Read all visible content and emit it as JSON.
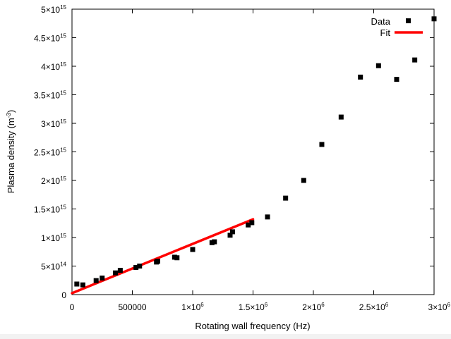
{
  "chart_data": {
    "type": "scatter",
    "title": "",
    "xlabel": "Rotating wall frequency (Hz)",
    "ylabel": "Plasma density (m",
    "ylabel_exp": "-3",
    "ylabel_close": ")",
    "xlim": [
      0,
      3000000
    ],
    "ylim": [
      0,
      5000000000000000.0
    ],
    "grid": false,
    "legend_position": "top-right",
    "x_ticks": [
      {
        "value": 0,
        "mantissa": "0",
        "exp": ""
      },
      {
        "value": 500000,
        "mantissa": "500000",
        "exp": ""
      },
      {
        "value": 1000000,
        "mantissa": "1×10",
        "exp": "6"
      },
      {
        "value": 1500000,
        "mantissa": "1.5×10",
        "exp": "6"
      },
      {
        "value": 2000000,
        "mantissa": "2×10",
        "exp": "6"
      },
      {
        "value": 2500000,
        "mantissa": "2.5×10",
        "exp": "6"
      },
      {
        "value": 3000000,
        "mantissa": "3×10",
        "exp": "6"
      }
    ],
    "y_ticks": [
      {
        "value": 0,
        "mantissa": "0",
        "exp": ""
      },
      {
        "value": 500000000000000.0,
        "mantissa": "5×10",
        "exp": "14"
      },
      {
        "value": 1000000000000000.0,
        "mantissa": "1×10",
        "exp": "15"
      },
      {
        "value": 1500000000000000.0,
        "mantissa": "1.5×10",
        "exp": "15"
      },
      {
        "value": 2000000000000000.0,
        "mantissa": "2×10",
        "exp": "15"
      },
      {
        "value": 2500000000000000.0,
        "mantissa": "2.5×10",
        "exp": "15"
      },
      {
        "value": 3000000000000000.0,
        "mantissa": "3×10",
        "exp": "15"
      },
      {
        "value": 3500000000000000.0,
        "mantissa": "3.5×10",
        "exp": "15"
      },
      {
        "value": 4000000000000000.0,
        "mantissa": "4×10",
        "exp": "15"
      },
      {
        "value": 4500000000000000.0,
        "mantissa": "4.5×10",
        "exp": "15"
      },
      {
        "value": 5000000000000000.0,
        "mantissa": "5×10",
        "exp": "15"
      }
    ],
    "series": [
      {
        "name": "Data",
        "kind": "points",
        "color": "#000000",
        "points": [
          [
            40000,
            185000000000000.0
          ],
          [
            90000,
            170000000000000.0
          ],
          [
            200000,
            245000000000000.0
          ],
          [
            250000,
            290000000000000.0
          ],
          [
            360000,
            380000000000000.0
          ],
          [
            400000,
            425000000000000.0
          ],
          [
            530000,
            475000000000000.0
          ],
          [
            560000,
            500000000000000.0
          ],
          [
            700000,
            570000000000000.0
          ],
          [
            710000,
            585000000000000.0
          ],
          [
            850000,
            655000000000000.0
          ],
          [
            870000,
            645000000000000.0
          ],
          [
            1000000,
            790000000000000.0
          ],
          [
            1160000,
            910000000000000.0
          ],
          [
            1180000,
            925000000000000.0
          ],
          [
            1310000,
            1040000000000000.0
          ],
          [
            1330000,
            1100000000000000.0
          ],
          [
            1460000,
            1220000000000000.0
          ],
          [
            1490000,
            1260000000000000.0
          ],
          [
            1620000,
            1360000000000000.0
          ],
          [
            1770000,
            1690000000000000.0
          ],
          [
            1920000,
            2000000000000000.0
          ],
          [
            2070000,
            2630000000000000.0
          ],
          [
            2230000,
            3110000000000000.0
          ],
          [
            2390000,
            3810000000000000.0
          ],
          [
            2540000,
            4010000000000000.0
          ],
          [
            2690000,
            3770000000000000.0
          ],
          [
            2840000,
            4110000000000000.0
          ],
          [
            3000000,
            4830000000000000.0
          ]
        ]
      },
      {
        "name": "Fit",
        "kind": "line",
        "color": "#ff0000",
        "x": [
          0,
          1500000
        ],
        "y": [
          25000000000000.0,
          1320000000000000.0
        ]
      }
    ]
  }
}
